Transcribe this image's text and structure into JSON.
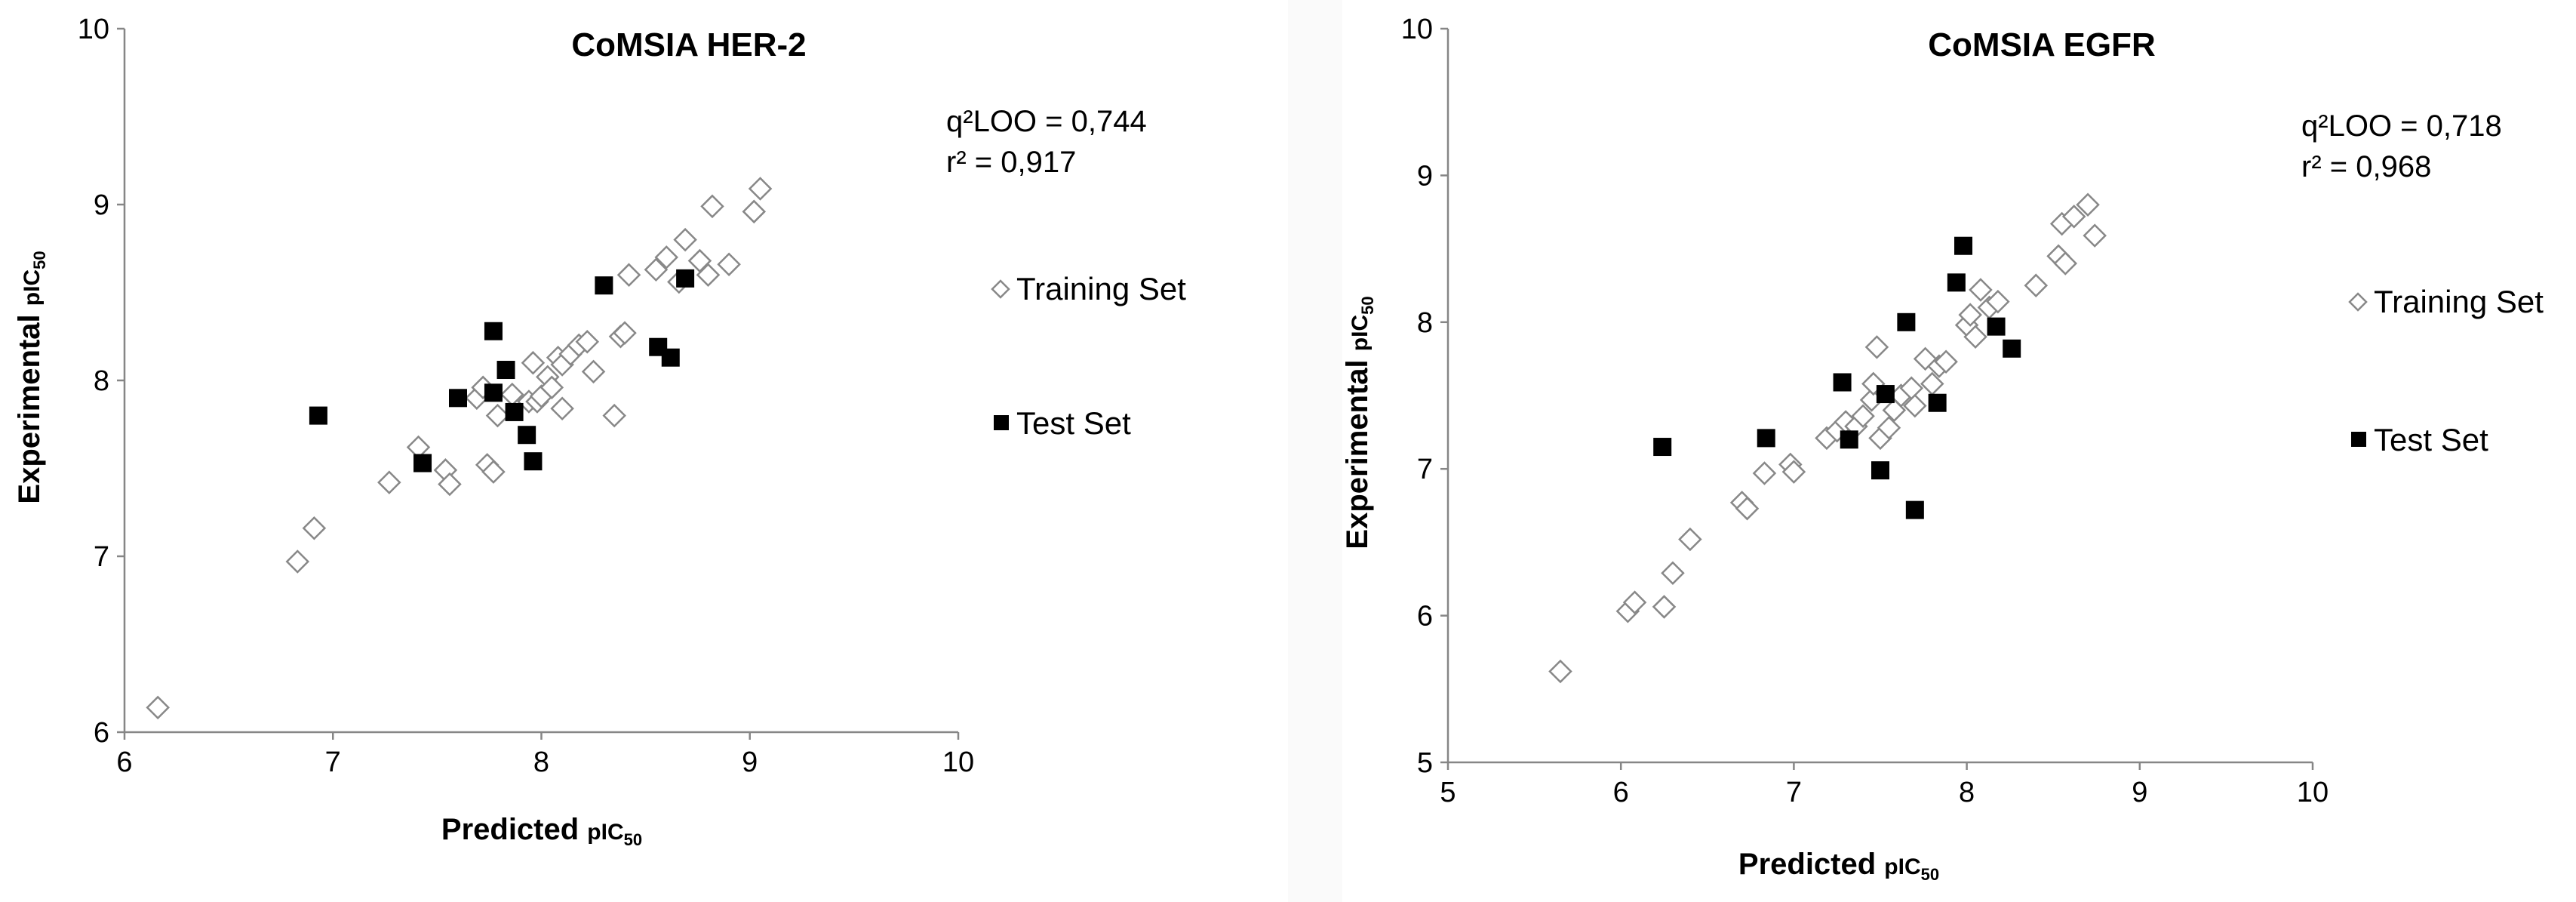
{
  "chart_data": [
    {
      "type": "scatter",
      "title": "CoMSIA HER-2",
      "xlabel": {
        "main": "Predicted ",
        "unit": "pIC",
        "sub": "50"
      },
      "ylabel": {
        "main": "Experimental ",
        "unit": "pIC",
        "sub": "50"
      },
      "xlim": [
        6,
        10
      ],
      "ylim": [
        6,
        10
      ],
      "xticks": [
        "6",
        "7",
        "8",
        "9",
        "10"
      ],
      "yticks": [
        "6",
        "7",
        "8",
        "9",
        "10"
      ],
      "grid": false,
      "legend_position": "right",
      "stats": [
        "q²LOO = 0,744",
        "r² = 0,917"
      ],
      "series": [
        {
          "name": "Training Set",
          "marker": "open-diamond",
          "color": "#888888",
          "points": [
            [
              6.16,
              6.14
            ],
            [
              6.83,
              6.97
            ],
            [
              6.91,
              7.16
            ],
            [
              7.27,
              7.42
            ],
            [
              7.41,
              7.62
            ],
            [
              7.54,
              7.49
            ],
            [
              7.56,
              7.41
            ],
            [
              7.69,
              7.9
            ],
            [
              7.72,
              7.96
            ],
            [
              7.74,
              7.52
            ],
            [
              7.77,
              7.48
            ],
            [
              7.79,
              7.8
            ],
            [
              7.86,
              7.92
            ],
            [
              7.94,
              7.88
            ],
            [
              7.96,
              8.1
            ],
            [
              7.98,
              7.88
            ],
            [
              8.0,
              7.91
            ],
            [
              8.03,
              8.02
            ],
            [
              8.05,
              7.96
            ],
            [
              8.08,
              8.13
            ],
            [
              8.1,
              8.09
            ],
            [
              8.1,
              7.84
            ],
            [
              8.14,
              8.15
            ],
            [
              8.18,
              8.2
            ],
            [
              8.22,
              8.22
            ],
            [
              8.25,
              8.05
            ],
            [
              8.35,
              7.8
            ],
            [
              8.38,
              8.25
            ],
            [
              8.4,
              8.27
            ],
            [
              8.42,
              8.6
            ],
            [
              8.55,
              8.63
            ],
            [
              8.6,
              8.7
            ],
            [
              8.66,
              8.56
            ],
            [
              8.69,
              8.8
            ],
            [
              8.76,
              8.68
            ],
            [
              8.8,
              8.6
            ],
            [
              8.82,
              8.99
            ],
            [
              8.9,
              8.66
            ],
            [
              9.02,
              8.96
            ],
            [
              9.05,
              9.09
            ]
          ]
        },
        {
          "name": "Test Set",
          "marker": "filled-square",
          "color": "#000000",
          "points": [
            [
              6.93,
              7.8
            ],
            [
              7.43,
              7.53
            ],
            [
              7.6,
              7.9
            ],
            [
              7.77,
              8.28
            ],
            [
              7.77,
              7.93
            ],
            [
              7.83,
              8.06
            ],
            [
              7.87,
              7.82
            ],
            [
              7.93,
              7.69
            ],
            [
              7.96,
              7.54
            ],
            [
              8.3,
              8.54
            ],
            [
              8.56,
              8.19
            ],
            [
              8.62,
              8.13
            ],
            [
              8.69,
              8.58
            ]
          ]
        }
      ]
    },
    {
      "type": "scatter",
      "title": "CoMSIA EGFR",
      "xlabel": {
        "main": "Predicted ",
        "unit": "pIC",
        "sub": "50"
      },
      "ylabel": {
        "main": "Experimental ",
        "unit": "pIC",
        "sub": "50"
      },
      "xlim": [
        5,
        10
      ],
      "ylim": [
        5,
        10
      ],
      "xticks": [
        "5",
        "6",
        "7",
        "8",
        "9",
        "10"
      ],
      "yticks": [
        "5",
        "6",
        "7",
        "8",
        "9",
        "10"
      ],
      "grid": false,
      "legend_position": "right",
      "stats": [
        "q²LOO = 0,718",
        "r² = 0,968"
      ],
      "series": [
        {
          "name": "Training Set",
          "marker": "open-diamond",
          "color": "#888888",
          "points": [
            [
              5.65,
              5.62
            ],
            [
              6.04,
              6.03
            ],
            [
              6.08,
              6.09
            ],
            [
              6.25,
              6.06
            ],
            [
              6.3,
              6.29
            ],
            [
              6.4,
              6.52
            ],
            [
              6.7,
              6.77
            ],
            [
              6.73,
              6.73
            ],
            [
              6.83,
              6.97
            ],
            [
              6.98,
              7.03
            ],
            [
              7.0,
              6.98
            ],
            [
              7.19,
              7.21
            ],
            [
              7.25,
              7.26
            ],
            [
              7.3,
              7.32
            ],
            [
              7.36,
              7.29
            ],
            [
              7.4,
              7.36
            ],
            [
              7.45,
              7.47
            ],
            [
              7.46,
              7.58
            ],
            [
              7.48,
              7.83
            ],
            [
              7.5,
              7.21
            ],
            [
              7.55,
              7.28
            ],
            [
              7.58,
              7.4
            ],
            [
              7.62,
              7.5
            ],
            [
              7.68,
              7.55
            ],
            [
              7.7,
              7.43
            ],
            [
              7.76,
              7.75
            ],
            [
              7.8,
              7.58
            ],
            [
              7.84,
              7.7
            ],
            [
              7.88,
              7.73
            ],
            [
              8.0,
              7.98
            ],
            [
              8.02,
              8.05
            ],
            [
              8.05,
              7.9
            ],
            [
              8.08,
              8.22
            ],
            [
              8.13,
              8.1
            ],
            [
              8.18,
              8.14
            ],
            [
              8.4,
              8.25
            ],
            [
              8.53,
              8.45
            ],
            [
              8.55,
              8.67
            ],
            [
              8.57,
              8.4
            ],
            [
              8.62,
              8.72
            ],
            [
              8.7,
              8.8
            ],
            [
              8.74,
              8.59
            ]
          ]
        },
        {
          "name": "Test Set",
          "marker": "filled-square",
          "color": "#000000",
          "points": [
            [
              6.24,
              7.15
            ],
            [
              6.84,
              7.21
            ],
            [
              7.28,
              7.59
            ],
            [
              7.32,
              7.2
            ],
            [
              7.5,
              6.99
            ],
            [
              7.53,
              7.51
            ],
            [
              7.65,
              8.0
            ],
            [
              7.7,
              6.72
            ],
            [
              7.83,
              7.45
            ],
            [
              7.94,
              8.27
            ],
            [
              7.98,
              8.52
            ],
            [
              8.17,
              7.97
            ],
            [
              8.26,
              7.82
            ]
          ]
        }
      ]
    }
  ]
}
